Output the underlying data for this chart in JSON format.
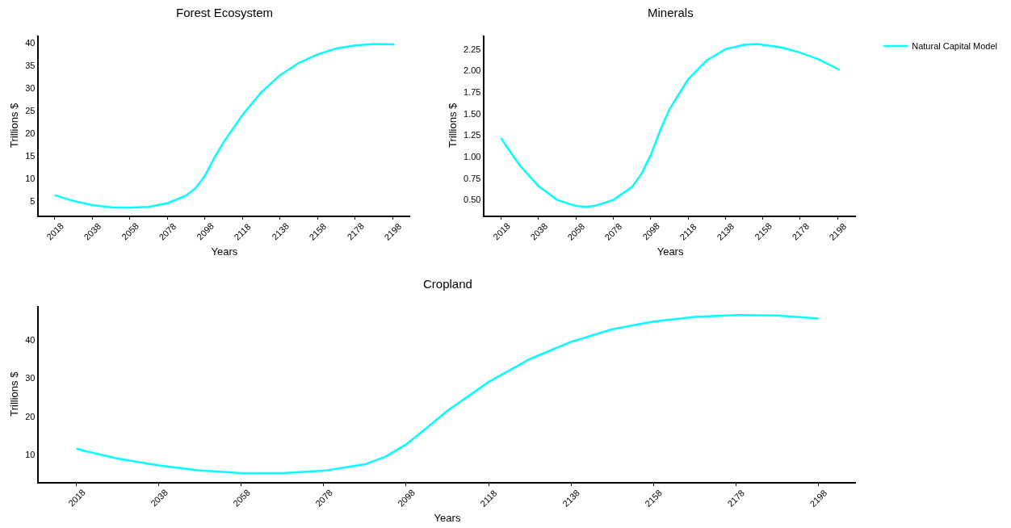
{
  "chart_data": [
    {
      "type": "line",
      "title": "Forest Ecosystem",
      "xlabel": "Years",
      "ylabel": "Trillions $",
      "grid": false,
      "marker": "none",
      "line_style": "solid",
      "xlim": [
        2009.4,
        2207.5
      ],
      "xticks": [
        2018,
        2038,
        2058,
        2078,
        2098,
        2118,
        2138,
        2158,
        2178,
        2198
      ],
      "ylim": [
        1.8,
        41.6
      ],
      "yticks": [
        5,
        10,
        15,
        20,
        25,
        30,
        35,
        40
      ],
      "series": [
        {
          "color": "#00ffff",
          "x": [
            2018,
            2028,
            2038,
            2048,
            2058,
            2068,
            2078,
            2088,
            2093,
            2098,
            2103,
            2108,
            2118,
            2128,
            2138,
            2148,
            2158,
            2168,
            2178,
            2188,
            2199
          ],
          "values": [
            6.3,
            5.0,
            4.1,
            3.6,
            3.5,
            3.7,
            4.5,
            6.2,
            7.8,
            10.5,
            14.5,
            18,
            24,
            29,
            32.8,
            35.5,
            37.4,
            38.7,
            39.4,
            39.7,
            39.6
          ]
        }
      ]
    },
    {
      "type": "line",
      "title": "Minerals",
      "xlabel": "Years",
      "ylabel": "Trillions $",
      "grid": false,
      "legend": "top right",
      "marker": "none",
      "line_style": "solid",
      "xlim": [
        2009,
        2208
      ],
      "xticks": [
        2018,
        2038,
        2058,
        2078,
        2098,
        2118,
        2138,
        2158,
        2178,
        2198
      ],
      "ylim": [
        0.32,
        2.41
      ],
      "yticks": [
        {
          "value": 0.5,
          "label": "0.50"
        },
        {
          "value": 0.75,
          "label": "0.75"
        },
        {
          "value": 1.0,
          "label": "1.00"
        },
        {
          "value": 1.25,
          "label": "1.25"
        },
        {
          "value": 1.5,
          "label": "1.50"
        },
        {
          "value": 1.75,
          "label": "1.75"
        },
        {
          "value": 2.0,
          "label": "2.00"
        },
        {
          "value": 2.25,
          "label": "2.25"
        }
      ],
      "series": [
        {
          "name": "Natural Capital Model",
          "color": "#00ffff",
          "x": [
            2018,
            2020,
            2028,
            2038,
            2048,
            2058,
            2063,
            2068,
            2078,
            2088,
            2093,
            2098,
            2103,
            2108,
            2118,
            2128,
            2138,
            2148,
            2155,
            2168,
            2178,
            2188,
            2199
          ],
          "values": [
            1.22,
            1.15,
            0.9,
            0.66,
            0.5,
            0.43,
            0.42,
            0.43,
            0.5,
            0.65,
            0.8,
            1.02,
            1.3,
            1.55,
            1.9,
            2.12,
            2.25,
            2.3,
            2.31,
            2.27,
            2.21,
            2.13,
            2.01
          ]
        }
      ]
    },
    {
      "type": "line",
      "title": "Cropland",
      "xlabel": "Years",
      "ylabel": "Trillions $",
      "grid": false,
      "marker": "none",
      "line_style": "solid",
      "xlim": [
        2008.8,
        2207.2
      ],
      "xticks": [
        2018,
        2038,
        2058,
        2078,
        2098,
        2118,
        2138,
        2158,
        2178,
        2198
      ],
      "ylim": [
        2.85,
        48.8
      ],
      "yticks": [
        10,
        20,
        30,
        40
      ],
      "series": [
        {
          "color": "#00ffff",
          "x": [
            2018,
            2020,
            2028,
            2038,
            2048,
            2058,
            2068,
            2078,
            2088,
            2093,
            2098,
            2103,
            2108,
            2118,
            2128,
            2138,
            2148,
            2158,
            2168,
            2178,
            2188,
            2198
          ],
          "values": [
            11.6,
            11,
            9,
            7.2,
            5.9,
            5.2,
            5.2,
            5.8,
            7.5,
            9.5,
            12.7,
            17,
            21.5,
            29,
            35,
            39.5,
            42.8,
            44.8,
            46,
            46.5,
            46.4,
            45.6
          ]
        }
      ]
    }
  ]
}
